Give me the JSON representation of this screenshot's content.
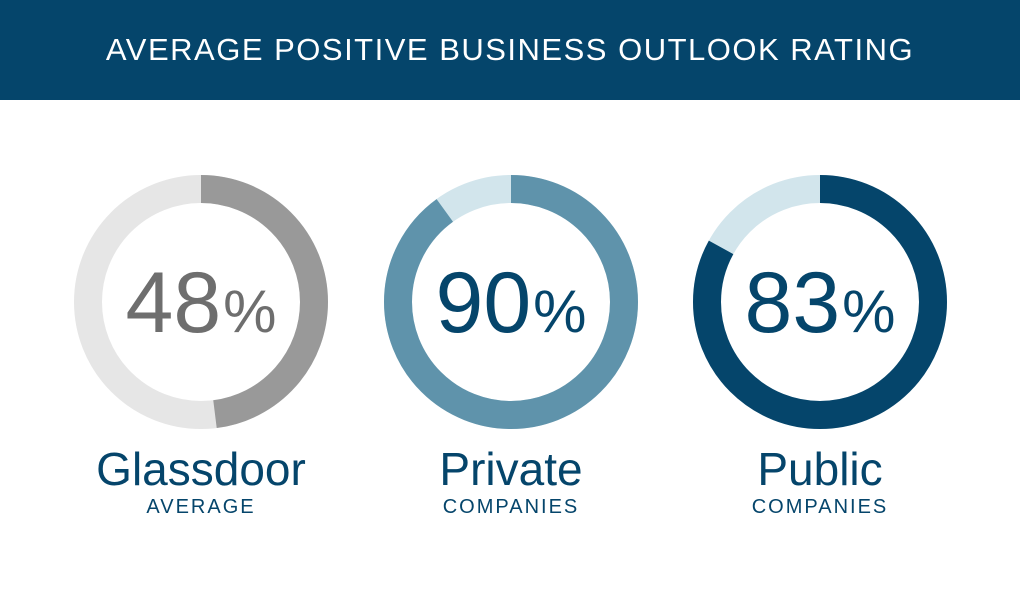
{
  "header": {
    "title": "AVERAGE POSITIVE BUSINESS OUTLOOK RATING",
    "background": "#05456b"
  },
  "chart_data": {
    "type": "pie",
    "title": "AVERAGE POSITIVE BUSINESS OUTLOOK RATING",
    "unit": "%",
    "series": [
      {
        "label": "Glassdoor",
        "sublabel": "AVERAGE",
        "value": 48,
        "color_fill": "#999999",
        "color_track": "#e6e6e6",
        "color_text": "#6e6e6e"
      },
      {
        "label": "Private",
        "sublabel": "COMPANIES",
        "value": 90,
        "color_fill": "#5f93ab",
        "color_track": "#d2e5ec",
        "color_text": "#05456b"
      },
      {
        "label": "Public",
        "sublabel": "COMPANIES",
        "value": 83,
        "color_fill": "#05456b",
        "color_track": "#d2e5ec",
        "color_text": "#05456b"
      }
    ],
    "label_color": "#05456b"
  }
}
